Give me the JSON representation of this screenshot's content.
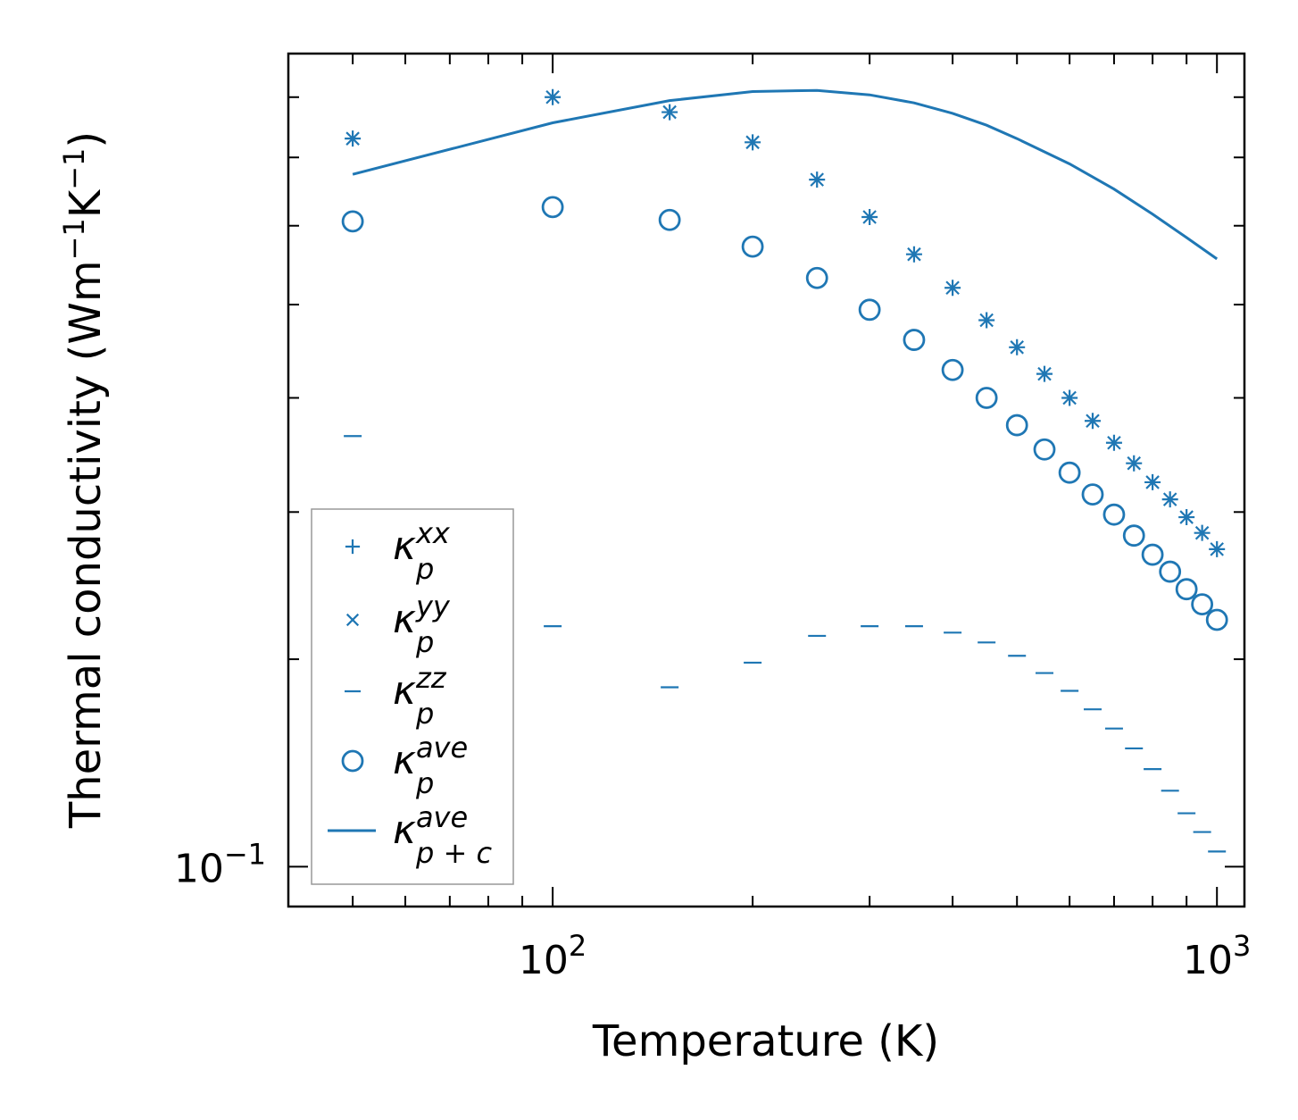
{
  "chart_data": {
    "type": "scatter",
    "xscale": "log",
    "yscale": "log",
    "xlabel": "Temperature (K)",
    "ylabel": "Thermal conductivity (Wm",
    "ylabel_sup1": "−1",
    "ylabel_mid": "K",
    "ylabel_sup2": "−1",
    "ylabel_end": ")",
    "xlim": [
      40,
      1100
    ],
    "ylim": [
      0.0925,
      0.49
    ],
    "x_ticks": [
      {
        "value": 100,
        "base": "10",
        "exp": "2"
      },
      {
        "value": 1000,
        "base": "10",
        "exp": "3"
      }
    ],
    "y_ticks": [
      {
        "value": 0.1,
        "base": "10",
        "exp": "−1"
      }
    ],
    "color": "#1f77b4",
    "series": [
      {
        "name": "kappa_p_xx",
        "marker": "plus",
        "x": [
          50,
          100,
          150,
          200,
          250,
          300,
          350,
          400,
          450,
          500,
          550,
          600,
          650,
          700,
          750,
          800,
          850,
          900,
          950,
          1000
        ],
        "y": [
          0.415,
          0.45,
          0.437,
          0.412,
          0.383,
          0.356,
          0.331,
          0.31,
          0.291,
          0.276,
          0.262,
          0.25,
          0.239,
          0.229,
          0.22,
          0.212,
          0.205,
          0.198,
          0.192,
          0.186
        ]
      },
      {
        "name": "kappa_p_yy",
        "marker": "x",
        "x": [
          50,
          100,
          150,
          200,
          250,
          300,
          350,
          400,
          450,
          500,
          550,
          600,
          650,
          700,
          750,
          800,
          850,
          900,
          950,
          1000
        ],
        "y": [
          0.415,
          0.45,
          0.437,
          0.412,
          0.383,
          0.356,
          0.331,
          0.31,
          0.291,
          0.276,
          0.262,
          0.25,
          0.239,
          0.229,
          0.22,
          0.212,
          0.205,
          0.198,
          0.192,
          0.186
        ]
      },
      {
        "name": "kappa_p_zz",
        "marker": "hline",
        "x": [
          50,
          100,
          150,
          200,
          250,
          300,
          350,
          400,
          450,
          500,
          550,
          600,
          650,
          700,
          750,
          800,
          850,
          900,
          950,
          1000
        ],
        "y": [
          0.232,
          0.16,
          0.142,
          0.149,
          0.157,
          0.16,
          0.16,
          0.158,
          0.155,
          0.151,
          0.146,
          0.141,
          0.136,
          0.131,
          0.126,
          0.121,
          0.116,
          0.111,
          0.107,
          0.103
        ]
      },
      {
        "name": "kappa_p_ave",
        "marker": "circle",
        "x": [
          50,
          100,
          150,
          200,
          250,
          300,
          350,
          400,
          450,
          500,
          550,
          600,
          650,
          700,
          750,
          800,
          850,
          900,
          950,
          1000
        ],
        "y": [
          0.353,
          0.363,
          0.354,
          0.336,
          0.316,
          0.297,
          0.28,
          0.264,
          0.25,
          0.237,
          0.226,
          0.216,
          0.207,
          0.199,
          0.191,
          0.184,
          0.178,
          0.172,
          0.167,
          0.162
        ]
      },
      {
        "name": "kappa_p+c_ave",
        "marker": "line",
        "x": [
          50,
          100,
          150,
          200,
          250,
          300,
          350,
          400,
          450,
          500,
          600,
          700,
          800,
          900,
          1000
        ],
        "y": [
          0.387,
          0.428,
          0.447,
          0.455,
          0.456,
          0.452,
          0.445,
          0.436,
          0.426,
          0.415,
          0.395,
          0.376,
          0.358,
          0.342,
          0.328
        ]
      }
    ],
    "legend": {
      "position": "lower-left",
      "entries": [
        {
          "base": "κ",
          "sub": "p",
          "sup": "xx"
        },
        {
          "base": "κ",
          "sub": "p",
          "sup": "yy"
        },
        {
          "base": "κ",
          "sub": "p",
          "sup": "zz"
        },
        {
          "base": "κ",
          "sub": "p",
          "sup": "ave"
        },
        {
          "base": "κ",
          "sub": "p + c",
          "sup": "ave"
        }
      ]
    }
  }
}
